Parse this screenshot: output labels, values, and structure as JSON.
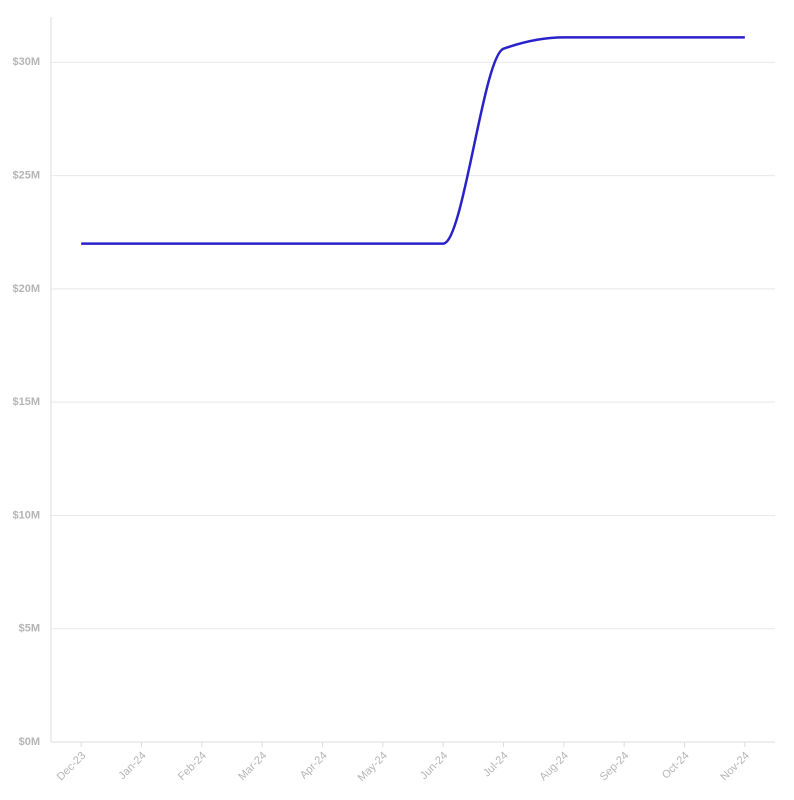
{
  "chart_data": {
    "type": "line",
    "categories": [
      "Dec-23",
      "Jan-24",
      "Feb-24",
      "Mar-24",
      "Apr-24",
      "May-24",
      "Jun-24",
      "Jul-24",
      "Aug-24",
      "Sep-24",
      "Oct-24",
      "Nov-24"
    ],
    "series": [
      {
        "color": "#2a22c9",
        "values": [
          22000000,
          22000000,
          22000000,
          22000000,
          22000000,
          22000000,
          22000000,
          30600000,
          31100000,
          31100000,
          31100000,
          31100000
        ]
      }
    ],
    "ylim": [
      0,
      32000000
    ],
    "yticks": [
      {
        "value": 0,
        "label": "$0M"
      },
      {
        "value": 5000000,
        "label": "$5M"
      },
      {
        "value": 10000000,
        "label": "$10M"
      },
      {
        "value": 15000000,
        "label": "$15M"
      },
      {
        "value": 20000000,
        "label": "$20M"
      },
      {
        "value": 25000000,
        "label": "$25M"
      },
      {
        "value": 30000000,
        "label": "$30M"
      }
    ],
    "grid": true
  }
}
